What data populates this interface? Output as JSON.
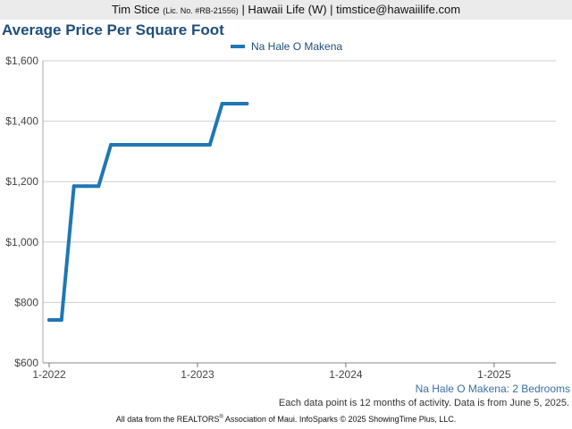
{
  "header": {
    "name": "Tim Stice",
    "license": "(Lic. No. #RB-21556)",
    "rest": "| Hawaii Life (W) | timstice@hawaiilife.com"
  },
  "chart_data": {
    "type": "line",
    "title": "Average Price Per Square Foot",
    "subtitle": "Na Hale O Makena: 2 Bedrooms",
    "xlabel": "",
    "ylabel": "",
    "x_tick_labels": [
      "1-2022",
      "1-2023",
      "1-2024",
      "1-2025"
    ],
    "y_tick_labels": [
      "$600",
      "$800",
      "$1,000",
      "$1,200",
      "$1,400",
      "$1,600"
    ],
    "ylim": [
      600,
      1600
    ],
    "xlim": [
      "2022-01",
      "2025-06"
    ],
    "grid": true,
    "legend": "top-center",
    "series": [
      {
        "name": "Na Hale O Makena",
        "color": "#1f77b4",
        "x": [
          "2022-01",
          "2022-02",
          "2022-03",
          "2022-04",
          "2022-05",
          "2022-06",
          "2022-07",
          "2022-08",
          "2022-09",
          "2022-10",
          "2022-11",
          "2022-12",
          "2023-01",
          "2023-02",
          "2023-03",
          "2023-04",
          "2023-05"
        ],
        "y": [
          742,
          742,
          1185,
          1185,
          1185,
          1322,
          1322,
          1322,
          1322,
          1322,
          1322,
          1322,
          1322,
          1322,
          1458,
          1458,
          1458
        ]
      }
    ]
  },
  "note": "Each data point is 12 months of activity. Data is from June 5, 2025.",
  "footer": {
    "text_a": "All data from the REALTORS",
    "reg": "®",
    "text_b": " Association of Maui. InfoSparks © 2025 ShowingTime Plus, LLC."
  }
}
